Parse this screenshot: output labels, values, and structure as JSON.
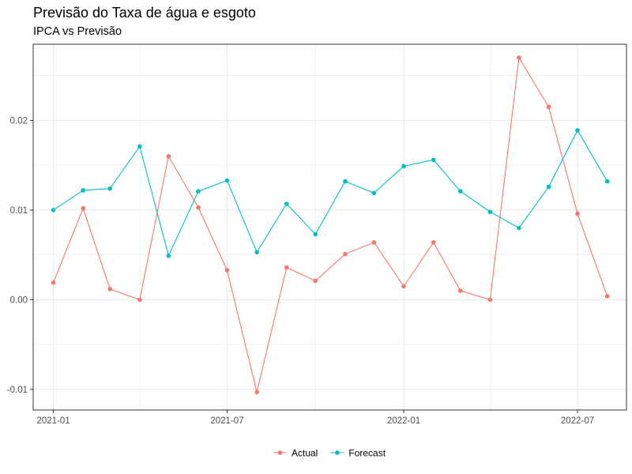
{
  "title": "Previsão do Taxa de água e esgoto",
  "subtitle": "IPCA vs Previsão",
  "colors": {
    "actual": "#F8766D",
    "forecast": "#00BFC4",
    "grid": "#ebebeb",
    "axis": "#333333"
  },
  "chart_data": {
    "type": "line",
    "title": "Previsão do Taxa de água e esgoto",
    "subtitle": "IPCA vs Previsão",
    "xlabel": "",
    "ylabel": "",
    "x": [
      "2021-01",
      "2021-02",
      "2021-03",
      "2021-04",
      "2021-05",
      "2021-06",
      "2021-07",
      "2021-08",
      "2021-09",
      "2021-10",
      "2021-11",
      "2021-12",
      "2022-01",
      "2022-02",
      "2022-03",
      "2022-04",
      "2022-05",
      "2022-06",
      "2022-07",
      "2022-08"
    ],
    "x_ticks": [
      "2021-01",
      "2021-07",
      "2022-01",
      "2022-07"
    ],
    "y_ticks": [
      -0.01,
      0.0,
      0.01,
      0.02
    ],
    "y_tick_labels": [
      "-0.01",
      "0.00",
      "0.01",
      "0.02"
    ],
    "ylim": [
      -0.0123,
      0.0285
    ],
    "xlim": [
      "2020-12-11",
      "2022-08-21"
    ],
    "grid": true,
    "legend_position": "bottom",
    "series": [
      {
        "name": "Actual",
        "color": "#F8766D",
        "values": [
          0.0019,
          0.0102,
          0.0012,
          0.0,
          0.016,
          0.0103,
          0.0033,
          -0.0103,
          0.0036,
          0.0021,
          0.0051,
          0.0064,
          0.0015,
          0.0064,
          0.001,
          0.0,
          0.027,
          0.0215,
          0.0096,
          0.0004
        ]
      },
      {
        "name": "Forecast",
        "color": "#00BFC4",
        "values": [
          0.01,
          0.0122,
          0.0124,
          0.0171,
          0.0049,
          0.0121,
          0.0133,
          0.0053,
          0.0107,
          0.0073,
          0.0132,
          0.0119,
          0.0149,
          0.0156,
          0.0121,
          0.0098,
          0.008,
          0.0126,
          0.0189,
          0.0132
        ]
      }
    ]
  }
}
